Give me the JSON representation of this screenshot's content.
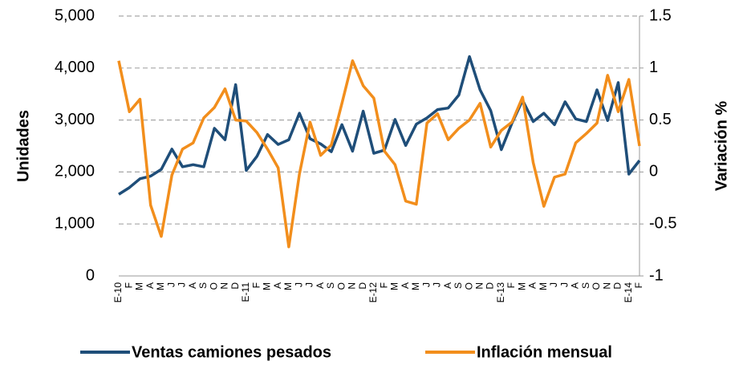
{
  "chart_data": {
    "type": "line",
    "categories": [
      "E-10",
      "F",
      "M",
      "A",
      "M",
      "J",
      "J",
      "A",
      "S",
      "O",
      "N",
      "D",
      "E-11",
      "F",
      "M",
      "A",
      "M",
      "J",
      "J",
      "A",
      "S",
      "O",
      "N",
      "D",
      "E-12",
      "F",
      "M",
      "A",
      "M",
      "J",
      "J",
      "A",
      "S",
      "O",
      "N",
      "D",
      "E-13",
      "F",
      "M",
      "A",
      "M",
      "J",
      "J",
      "A",
      "S",
      "O",
      "N",
      "D",
      "E-14",
      "F"
    ],
    "series": [
      {
        "name": "Ventas camiones pesados",
        "color": "#1f4e79",
        "values": [
          1570,
          1700,
          1870,
          1920,
          2050,
          2440,
          2100,
          2140,
          2100,
          2840,
          2620,
          3680,
          2030,
          2300,
          2720,
          2530,
          2620,
          3130,
          2640,
          2540,
          2390,
          2910,
          2400,
          3170,
          2360,
          2420,
          3010,
          2510,
          2920,
          3040,
          3200,
          3230,
          3480,
          4220,
          3580,
          3180,
          2430,
          2940,
          3380,
          2970,
          3130,
          2910,
          3350,
          3020,
          2970,
          3580,
          2990,
          3720,
          1960,
          2220
        ]
      },
      {
        "name": "Inflación mensual",
        "color": "#f28e1c",
        "axis": "y2",
        "values": [
          1.07,
          0.58,
          0.7,
          -0.32,
          -0.62,
          -0.03,
          0.22,
          0.28,
          0.52,
          0.62,
          0.8,
          0.5,
          0.49,
          0.38,
          0.22,
          0.04,
          -0.72,
          -0.02,
          0.48,
          0.16,
          0.26,
          0.66,
          1.07,
          0.83,
          0.71,
          0.2,
          0.07,
          -0.28,
          -0.31,
          0.47,
          0.56,
          0.31,
          0.42,
          0.5,
          0.66,
          0.24,
          0.4,
          0.48,
          0.72,
          0.09,
          -0.33,
          -0.05,
          -0.02,
          0.28,
          0.37,
          0.47,
          0.93,
          0.58,
          0.89,
          0.25
        ]
      }
    ],
    "y_label": "Unidades",
    "y2_label": "Variación %",
    "ylim": [
      0,
      5000
    ],
    "yticks": [
      0,
      {
        "value": 1000,
        "label": "1,000"
      },
      {
        "value": 2000,
        "label": "2,000"
      },
      {
        "value": 3000,
        "label": "3,000"
      },
      {
        "value": 4000,
        "label": "4,000"
      },
      {
        "value": 5000,
        "label": "5,000"
      }
    ],
    "y2lim": [
      -1,
      1.5
    ],
    "y2ticks": [
      -1,
      -0.5,
      0,
      0.5,
      1,
      1.5
    ],
    "grid": true,
    "legend": "bottom"
  }
}
